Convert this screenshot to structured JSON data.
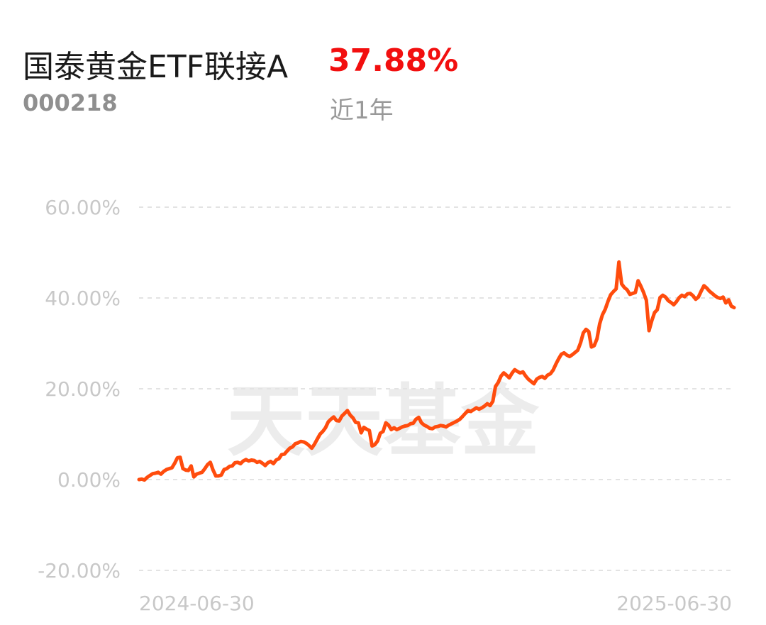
{
  "header": {
    "fund_name": "国泰黄金ETF联接A",
    "fund_code": "000218",
    "return_value": "37.88%",
    "period_label": "近1年"
  },
  "watermark": "天天基金",
  "colors": {
    "line": "#ff4c0d",
    "return_positive": "#f20f0f",
    "grid": "#e3e3e3",
    "tick_text": "#c8c8c8"
  },
  "chart_data": {
    "type": "line",
    "title": "",
    "xlabel": "",
    "ylabel": "",
    "x_tick_labels": [
      "2024-06-30",
      "2025-06-30"
    ],
    "y_ticks": [
      60,
      40,
      20,
      0,
      -20
    ],
    "y_tick_labels": [
      "60.00%",
      "40.00%",
      "20.00%",
      "0.00%",
      "-20.00%"
    ],
    "ylim": [
      -20,
      60
    ],
    "grid": true,
    "grid_style": "dashed-horizontal",
    "series": [
      {
        "name": "",
        "x_start": "2024-06-30",
        "x_end": "2025-06-30",
        "values": [
          0,
          0.1,
          -0.1,
          0.5,
          0.9,
          1.3,
          1.4,
          1.6,
          1.2,
          1.8,
          2.2,
          2.4,
          2.6,
          3.6,
          4.8,
          4.9,
          2.4,
          2.1,
          2.0,
          3,
          0.6,
          1.2,
          1.4,
          1.6,
          2.4,
          3.3,
          3.8,
          2.1,
          0.8,
          0.8,
          1.0,
          2.2,
          2.4,
          2.9,
          3.0,
          3.7,
          3.8,
          3.5,
          4.1,
          4.4,
          4.1,
          4.3,
          4.2,
          3.8,
          4.0,
          3.6,
          3.1,
          3.7,
          4.0,
          3.5,
          4.3,
          4.6,
          5.5,
          5.6,
          6.3,
          6.9,
          7.2,
          7.9,
          8.1,
          8.4,
          8.3,
          8.0,
          7.5,
          6.9,
          7.8,
          8.9,
          10.0,
          10.6,
          11.4,
          12.7,
          13.3,
          13.8,
          13.0,
          12.9,
          14.0,
          14.6,
          15.2,
          14.2,
          13.6,
          12.6,
          12.5,
          10.3,
          11.5,
          11.1,
          10.8,
          7.4,
          7.7,
          8.5,
          10.2,
          10.6,
          12.5,
          12.0,
          11.0,
          11.4,
          11.0,
          11.3,
          11.6,
          11.8,
          11.9,
          12.3,
          12.4,
          13.3,
          13.7,
          12.5,
          12.0,
          11.7,
          11.3,
          11.2,
          11.6,
          11.7,
          11.9,
          11.8,
          11.6,
          12.0,
          12.3,
          12.6,
          12.9,
          13.3,
          13.9,
          14.6,
          15.2,
          15.0,
          15.4,
          15.8,
          15.5,
          15.8,
          16.2,
          16.7,
          16.3,
          17.2,
          20.5,
          21.4,
          22.8,
          23.5,
          23.0,
          22.4,
          23.4,
          24.2,
          23.8,
          23.5,
          23.7,
          22.8,
          22.1,
          21.6,
          21.1,
          22.1,
          22.5,
          22.7,
          22.3,
          23.0,
          23.3,
          24.1,
          25.4,
          26.6,
          27.6,
          27.9,
          27.4,
          27.1,
          27.5,
          28.0,
          28.5,
          30.1,
          32.3,
          33.1,
          32.6,
          29.2,
          29.5,
          31.0,
          34.3,
          36.3,
          37.5,
          39.2,
          40.7,
          41.4,
          42.0,
          47.9,
          43.1,
          42.3,
          41.8,
          40.8,
          41.0,
          41.2,
          43.8,
          42.6,
          41.2,
          39.5,
          32.8,
          35.0,
          36.8,
          37.4,
          40.1,
          40.6,
          40.2,
          39.4,
          39.0,
          38.5,
          39.2,
          40.1,
          40.6,
          40.3,
          40.9,
          41.0,
          40.5,
          39.7,
          40.2,
          41.5,
          42.7,
          42.2,
          41.5,
          41.0,
          40.5,
          40.1,
          39.9,
          40.2,
          38.9,
          39.6,
          38.2,
          37.88
        ]
      }
    ]
  }
}
